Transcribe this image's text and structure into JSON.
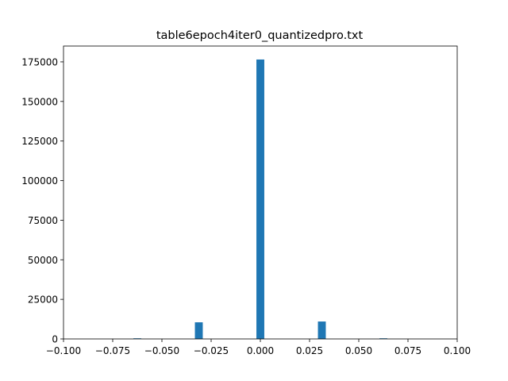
{
  "chart_data": {
    "type": "bar",
    "title": "table6epoch4iter0_quantizedpro.txt",
    "xlabel": "",
    "ylabel": "",
    "xlim": [
      -0.1,
      0.1
    ],
    "ylim": [
      0,
      185000
    ],
    "x_ticks": [
      -0.1,
      -0.075,
      -0.05,
      -0.025,
      0.0,
      0.025,
      0.05,
      0.075,
      0.1
    ],
    "x_tick_labels": [
      "−0.100",
      "−0.075",
      "−0.050",
      "−0.025",
      "0.000",
      "0.025",
      "0.050",
      "0.075",
      "0.100"
    ],
    "y_ticks": [
      0,
      25000,
      50000,
      75000,
      100000,
      125000,
      150000,
      175000
    ],
    "y_tick_labels": [
      "0",
      "25000",
      "50000",
      "75000",
      "100000",
      "125000",
      "150000",
      "175000"
    ],
    "bin_width": 0.004,
    "bars": [
      {
        "x": -0.0625,
        "value": 400
      },
      {
        "x": -0.03125,
        "value": 10500
      },
      {
        "x": 0.0,
        "value": 176500
      },
      {
        "x": 0.03125,
        "value": 11000
      },
      {
        "x": 0.0625,
        "value": 400
      }
    ],
    "bar_color": "#1f77b4",
    "grid": false,
    "legend": "none"
  }
}
